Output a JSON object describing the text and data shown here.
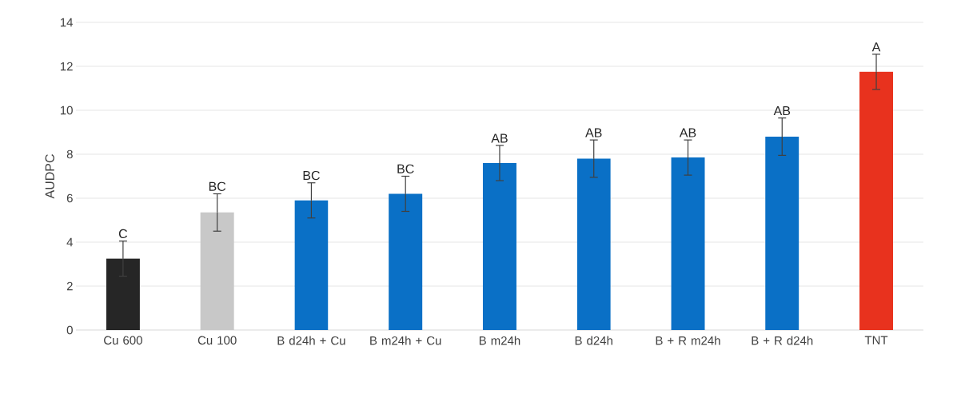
{
  "chart_data": {
    "type": "bar",
    "ylabel": "AUDPC",
    "categories": [
      "Cu 600",
      "Cu 100",
      "B d24h + Cu",
      "B m24h + Cu",
      "B m24h",
      "B d24h",
      "B + R m24h",
      "B + R d24h",
      "TNT"
    ],
    "values": [
      3.25,
      5.35,
      5.9,
      6.2,
      7.6,
      7.8,
      7.85,
      8.8,
      11.75
    ],
    "errors": [
      0.8,
      0.85,
      0.8,
      0.8,
      0.8,
      0.85,
      0.8,
      0.85,
      0.8
    ],
    "colors": [
      "#262626",
      "#c8c8c8",
      "#0a70c6",
      "#0a70c6",
      "#0a70c6",
      "#0a70c6",
      "#0a70c6",
      "#0a70c6",
      "#e8321e"
    ],
    "ylim": [
      0,
      14
    ],
    "yticks": [
      0,
      2,
      4,
      6,
      8,
      10,
      12,
      14
    ],
    "grid": "y",
    "annotations": [
      {
        "text": "C",
        "x": "Cu 600",
        "y": 4.05
      },
      {
        "text": "BC",
        "x": "Cu 100",
        "y": 6.2
      },
      {
        "text": "BC",
        "x": "B d24h + Cu",
        "y": 6.7
      },
      {
        "text": "BC",
        "x": "B m24h + Cu",
        "y": 7.0
      },
      {
        "text": "AB",
        "x": "B m24h",
        "y": 8.4
      },
      {
        "text": "AB",
        "x": "B d24h",
        "y": 8.65
      },
      {
        "text": "AB",
        "x": "B + R m24h",
        "y": 8.65
      },
      {
        "text": "AB",
        "x": "B + R d24h",
        "y": 9.65
      },
      {
        "text": "A",
        "x": "TNT",
        "y": 12.55
      }
    ]
  }
}
